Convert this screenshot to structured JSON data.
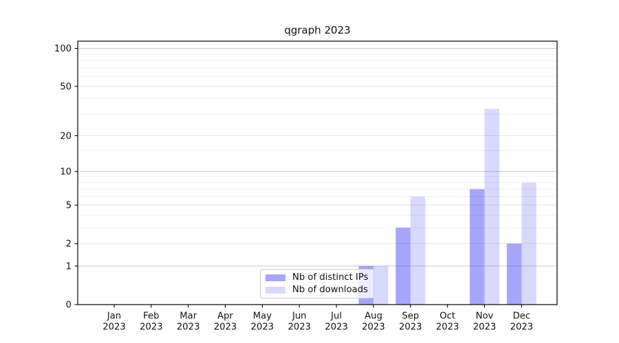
{
  "chart_data": {
    "type": "bar",
    "title": "qgraph 2023",
    "months": [
      "Jan",
      "Feb",
      "Mar",
      "Apr",
      "May",
      "Jun",
      "Jul",
      "Aug",
      "Sep",
      "Oct",
      "Nov",
      "Dec"
    ],
    "year_label": "2023",
    "series": [
      {
        "name": "Nb of distinct IPs",
        "color": "rgba(0,0,255,0.35)",
        "values": [
          0,
          0,
          0,
          0,
          0,
          0,
          0,
          1,
          3,
          0,
          7,
          2
        ]
      },
      {
        "name": "Nb of downloads",
        "color": "rgba(0,0,255,0.15)",
        "values": [
          0,
          0,
          0,
          0,
          0,
          0,
          0,
          1,
          6,
          0,
          33,
          8
        ]
      }
    ],
    "yscale": "log1p",
    "ylim": [
      0,
      114
    ],
    "yticks": [
      0,
      1,
      2,
      5,
      10,
      20,
      50,
      100
    ],
    "grid": {
      "decade_lines": [
        1,
        10,
        100
      ],
      "major_lines": [
        2,
        5,
        20,
        50
      ],
      "minor_lines": [
        3,
        4,
        6,
        7,
        8,
        9,
        15,
        30,
        40,
        60,
        70,
        80,
        90
      ]
    },
    "legend_position": "lower center",
    "colors": {
      "grid_decade": "#c6c6c6",
      "grid_major": "#e0e0e0",
      "grid_minor": "#efefef",
      "spine": "#000000",
      "tick": "#000000",
      "text": "#111111",
      "legend_border": "#cccccc",
      "legend_bg": "rgba(255,255,255,0.8)"
    }
  }
}
